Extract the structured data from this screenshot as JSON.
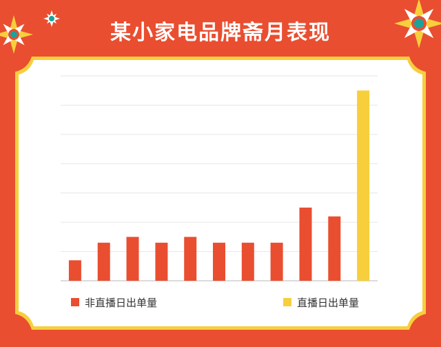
{
  "title": "某小家电品牌斋月表现",
  "colors": {
    "background": "#E94E30",
    "card": "#ffffff",
    "card_border": "#F7CF3D",
    "non_live": "#E94E30",
    "live": "#F7CF3D",
    "grid": "#e6e6e6",
    "baseline": "#cfcfcf"
  },
  "chart_data": {
    "type": "bar",
    "ylim": [
      0,
      7
    ],
    "gridlines": 7,
    "grid": true,
    "values": [
      0.7,
      1.3,
      1.5,
      1.3,
      1.5,
      1.3,
      1.3,
      1.3,
      2.5,
      2.2,
      6.5
    ],
    "series_index": [
      0,
      0,
      0,
      0,
      0,
      0,
      0,
      0,
      0,
      0,
      1
    ],
    "series": [
      {
        "name": "非直播日出单量",
        "color": "#E94E30"
      },
      {
        "name": "直播日出单量",
        "color": "#F7CF3D"
      }
    ],
    "legend_position": "bottom"
  }
}
